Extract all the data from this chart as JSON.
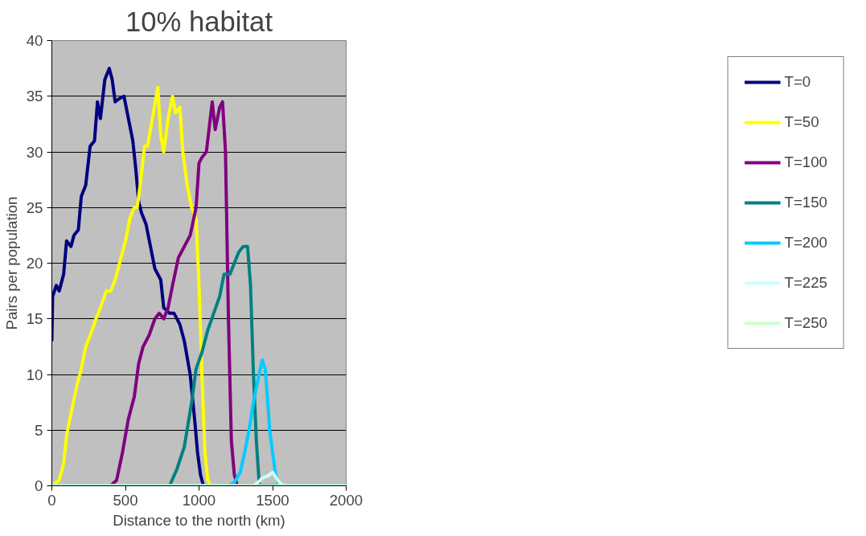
{
  "chart_data": {
    "type": "line",
    "title": "10% habitat",
    "xlabel": "Distance to the north (km)",
    "ylabel": "Pairs per population",
    "xlim": [
      0,
      2000
    ],
    "ylim": [
      0,
      40
    ],
    "xticks": [
      0,
      500,
      1000,
      1500,
      2000
    ],
    "yticks": [
      0,
      5,
      10,
      15,
      20,
      25,
      30,
      35,
      40
    ],
    "grid": "y",
    "legend": "right",
    "line_style": "solid",
    "marker": "none",
    "series": [
      {
        "name": "T=0",
        "color": "#000080",
        "x": [
          0,
          5,
          30,
          50,
          80,
          100,
          130,
          150,
          180,
          200,
          230,
          260,
          290,
          310,
          330,
          360,
          390,
          410,
          430,
          460,
          490,
          520,
          550,
          570,
          590,
          610,
          640,
          670,
          700,
          740,
          760,
          800,
          830,
          870,
          900,
          940,
          970,
          990,
          1010,
          1030,
          1100,
          2000
        ],
        "values": [
          13,
          17,
          18,
          17.5,
          19,
          22,
          21.5,
          22.5,
          23,
          26,
          27,
          30.5,
          31,
          34.5,
          33,
          36.5,
          37.5,
          36.5,
          34.5,
          34.8,
          35,
          33,
          31,
          28.5,
          25.5,
          24.5,
          23.5,
          21.5,
          19.5,
          18.5,
          16,
          15.5,
          15.5,
          14.5,
          13,
          10,
          6,
          3,
          1,
          0,
          0,
          0
        ]
      },
      {
        "name": "T=50",
        "color": "#ffff00",
        "x": [
          0,
          50,
          80,
          100,
          130,
          170,
          200,
          230,
          260,
          300,
          330,
          370,
          400,
          430,
          470,
          500,
          530,
          560,
          580,
          600,
          630,
          650,
          690,
          720,
          740,
          760,
          790,
          820,
          840,
          870,
          890,
          920,
          950,
          980,
          1000,
          1020,
          1040,
          1060,
          1080,
          2000
        ],
        "values": [
          0,
          0.5,
          2,
          4.5,
          6.5,
          9,
          10.5,
          12.5,
          13.5,
          15,
          16,
          17.5,
          17.5,
          18.5,
          20.5,
          22,
          24,
          25,
          25,
          27,
          30.5,
          30.5,
          33.5,
          35.8,
          31.5,
          30,
          33,
          35,
          33.5,
          34,
          30,
          27,
          25,
          24,
          18,
          10,
          3,
          0.5,
          0,
          0
        ]
      },
      {
        "name": "T=100",
        "color": "#800080",
        "x": [
          0,
          400,
          440,
          480,
          520,
          560,
          590,
          620,
          660,
          700,
          730,
          760,
          790,
          820,
          860,
          900,
          940,
          980,
          1000,
          1020,
          1050,
          1090,
          1110,
          1140,
          1160,
          1180,
          1200,
          1220,
          1240,
          1260,
          2000
        ],
        "values": [
          0,
          0,
          0.5,
          3,
          6,
          8,
          11,
          12.5,
          13.5,
          15,
          15.5,
          15,
          16,
          18,
          20.5,
          21.5,
          22.5,
          25,
          29,
          29.5,
          30,
          34.5,
          32,
          34,
          34.5,
          30,
          15,
          4,
          1,
          0,
          0
        ]
      },
      {
        "name": "T=150",
        "color": "#008080",
        "x": [
          0,
          800,
          850,
          900,
          950,
          980,
          1020,
          1060,
          1100,
          1140,
          1170,
          1210,
          1240,
          1270,
          1300,
          1330,
          1350,
          1370,
          1390,
          1410,
          2000
        ],
        "values": [
          0,
          0,
          1.5,
          3.5,
          7.5,
          10.5,
          12,
          14,
          15.5,
          17,
          19,
          19,
          20,
          21,
          21.5,
          21.5,
          18,
          10,
          4,
          0,
          0
        ]
      },
      {
        "name": "T=200",
        "color": "#00ccff",
        "x": [
          0,
          1200,
          1240,
          1280,
          1310,
          1340,
          1370,
          1400,
          1430,
          1450,
          1470,
          1480,
          1500,
          1520,
          1540,
          1560,
          2000
        ],
        "values": [
          0,
          0,
          0.3,
          1.2,
          3,
          5,
          7.5,
          9.5,
          11.3,
          10.5,
          7,
          5,
          3,
          1,
          0.2,
          0,
          0
        ]
      },
      {
        "name": "T=225",
        "color": "#ccffff",
        "x": [
          0,
          1370,
          1400,
          1430,
          1470,
          1500,
          1530,
          1560,
          1600,
          2000
        ],
        "values": [
          0,
          0,
          0.3,
          0.7,
          0.9,
          1.2,
          0.6,
          0.1,
          0,
          0
        ]
      },
      {
        "name": "T=250",
        "color": "#ccffcc",
        "x": [
          0,
          2000
        ],
        "values": [
          0,
          0
        ]
      }
    ]
  }
}
